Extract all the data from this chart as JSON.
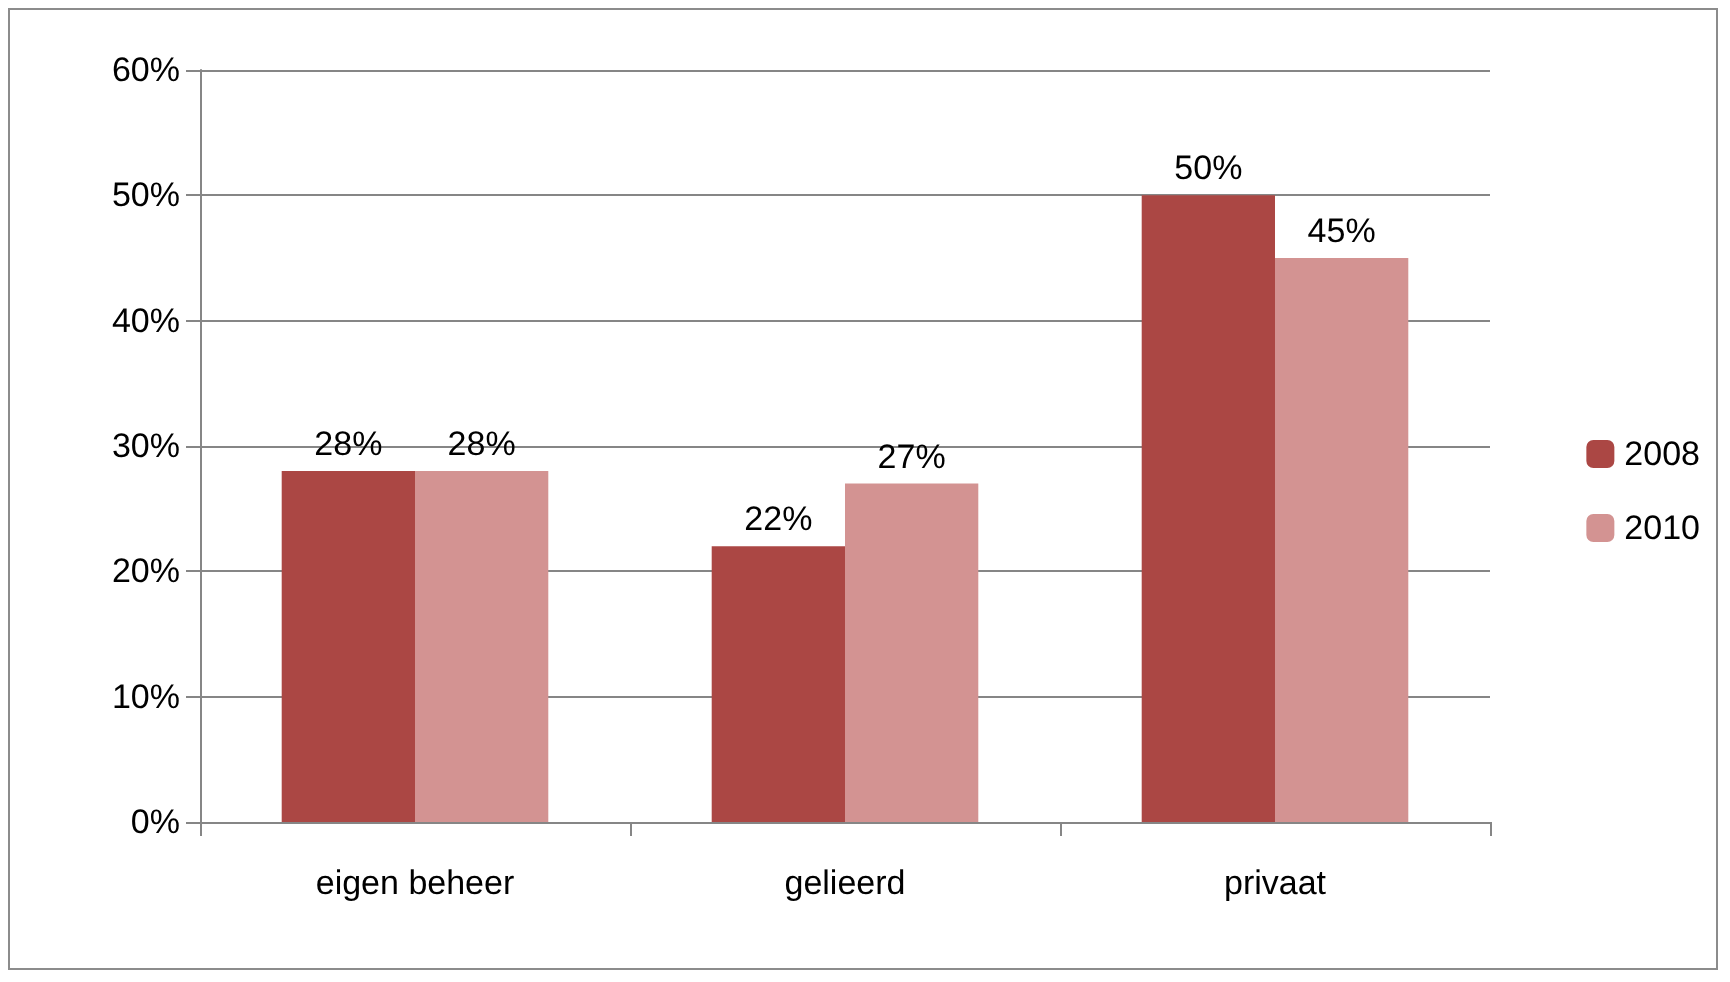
{
  "chart_data": {
    "type": "bar",
    "categories": [
      "eigen beheer",
      "gelieerd",
      "privaat"
    ],
    "series": [
      {
        "name": "2008",
        "color": "#ab4744",
        "values": [
          28,
          22,
          50
        ],
        "value_labels": [
          "28%",
          "22%",
          "50%"
        ]
      },
      {
        "name": "2010",
        "color": "#d39392",
        "values": [
          28,
          27,
          45
        ],
        "value_labels": [
          "28%",
          "27%",
          "45%"
        ]
      }
    ],
    "ylim": [
      0,
      60
    ],
    "yticks": [
      {
        "value": 0,
        "label": "0%"
      },
      {
        "value": 10,
        "label": "10%"
      },
      {
        "value": 20,
        "label": "20%"
      },
      {
        "value": 30,
        "label": "30%"
      },
      {
        "value": 40,
        "label": "40%"
      },
      {
        "value": 50,
        "label": "50%"
      },
      {
        "value": 60,
        "label": "60%"
      }
    ],
    "grid": "y",
    "legend": "right"
  }
}
